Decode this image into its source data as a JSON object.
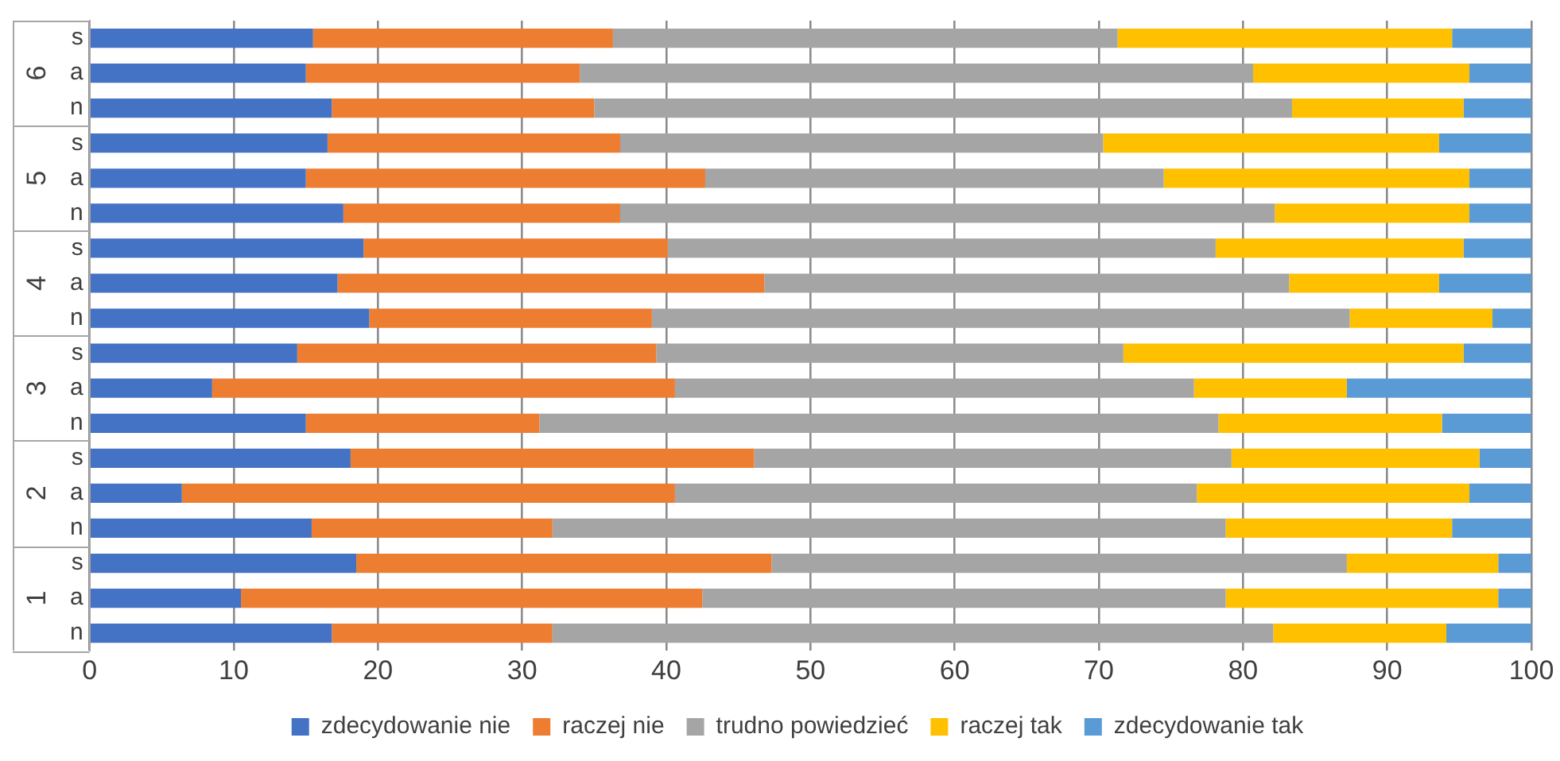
{
  "chart_data": {
    "type": "bar",
    "orientation": "horizontal",
    "stacked": true,
    "categories": [
      "s",
      "a",
      "n",
      "s",
      "a",
      "n",
      "s",
      "a",
      "n",
      "s",
      "a",
      "n",
      "s",
      "a",
      "n",
      "s",
      "a",
      "n"
    ],
    "annotations": [
      "6",
      "5",
      "4",
      "3",
      "2",
      "1"
    ],
    "series": [
      {
        "name": "zdecydowanie nie",
        "color": "#4472c4",
        "values": [
          15.5,
          15,
          16.8,
          16.5,
          15,
          17.6,
          19,
          17.2,
          19.4,
          14.4,
          8.5,
          15,
          18.1,
          6.4,
          15.4,
          18.5,
          10.5,
          16.8
        ]
      },
      {
        "name": "raczej nie",
        "color": "#ed7d31",
        "values": [
          20.8,
          19,
          18.2,
          20.3,
          27.7,
          19.2,
          21.1,
          29.6,
          19.6,
          24.9,
          32.1,
          16.2,
          28,
          34.2,
          16.7,
          28.8,
          32,
          15.3
        ]
      },
      {
        "name": "trudno powiedzieć",
        "color": "#a5a5a5",
        "values": [
          35,
          46.7,
          48.4,
          33.5,
          31.8,
          45.4,
          38,
          36.4,
          48.4,
          32.4,
          36,
          47.1,
          33.1,
          36.2,
          46.7,
          39.9,
          36.3,
          50
        ]
      },
      {
        "name": "raczej tak",
        "color": "#ffc000",
        "values": [
          23.2,
          15,
          11.9,
          23.3,
          21.2,
          13.5,
          17.2,
          10.4,
          9.9,
          23.6,
          10.6,
          15.5,
          17.2,
          18.9,
          15.7,
          10.5,
          18.9,
          12
        ]
      },
      {
        "name": "zdecydowanie tak",
        "color": "#5b9bd5",
        "values": [
          5.5,
          4.3,
          4.7,
          6.4,
          4.3,
          4.3,
          4.7,
          6.4,
          2.7,
          4.7,
          12.8,
          6.2,
          3.6,
          4.3,
          5.5,
          2.3,
          2.3,
          5.9
        ]
      }
    ],
    "xlim": [
      0,
      100
    ],
    "xticks": [
      0,
      10,
      20,
      30,
      40,
      50,
      60,
      70,
      80,
      90,
      100
    ],
    "grid": "x",
    "legend": "bottom"
  }
}
